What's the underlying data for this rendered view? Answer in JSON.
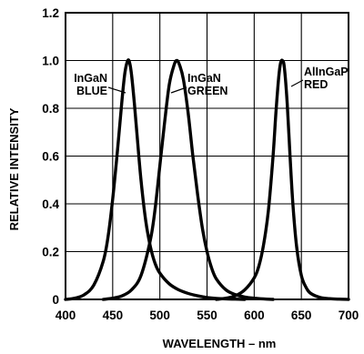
{
  "chart_data": {
    "type": "line",
    "title": "",
    "xlabel": "WAVELENGTH – nm",
    "ylabel": "RELATIVE INTENSITY",
    "xlim": [
      400,
      700
    ],
    "ylim": [
      0,
      1.2
    ],
    "xticks": [
      400,
      450,
      500,
      550,
      600,
      650,
      700
    ],
    "yticks": [
      0,
      0.2,
      0.4,
      0.6,
      0.8,
      1.0,
      1.2
    ],
    "xtick_labels": [
      "400",
      "450",
      "500",
      "550",
      "600",
      "650",
      "700"
    ],
    "ytick_labels": [
      "0",
      "0.2",
      "0.4",
      "0.6",
      "0.8",
      "1.0",
      "1.2"
    ],
    "grid": true,
    "series": [
      {
        "label_lines": [
          "InGaN",
          "BLUE"
        ],
        "x": [
          400,
          410,
          420,
          430,
          440,
          445,
          450,
          455,
          460,
          463,
          466,
          468,
          470,
          473,
          476,
          480,
          485,
          490,
          495,
          500,
          510,
          520,
          530,
          540,
          550,
          560,
          570,
          580,
          590
        ],
        "y": [
          0.0,
          0.005,
          0.02,
          0.06,
          0.16,
          0.26,
          0.42,
          0.62,
          0.84,
          0.95,
          1.0,
          0.99,
          0.94,
          0.82,
          0.68,
          0.5,
          0.33,
          0.22,
          0.15,
          0.11,
          0.065,
          0.04,
          0.025,
          0.015,
          0.008,
          0.004,
          0.002,
          0.001,
          0.0
        ]
      },
      {
        "label_lines": [
          "InGaN",
          "GREEN"
        ],
        "x": [
          440,
          450,
          460,
          470,
          480,
          490,
          495,
          500,
          505,
          510,
          515,
          518,
          521,
          525,
          530,
          535,
          540,
          545,
          550,
          555,
          560,
          570,
          580,
          590,
          600,
          610,
          620
        ],
        "y": [
          0.0,
          0.005,
          0.015,
          0.04,
          0.1,
          0.25,
          0.38,
          0.56,
          0.74,
          0.9,
          0.98,
          1.0,
          0.98,
          0.92,
          0.78,
          0.6,
          0.44,
          0.3,
          0.2,
          0.13,
          0.085,
          0.04,
          0.02,
          0.01,
          0.005,
          0.002,
          0.0
        ]
      },
      {
        "label_lines": [
          "AlInGaP",
          "RED"
        ],
        "x": [
          560,
          570,
          580,
          590,
          600,
          605,
          610,
          615,
          620,
          623,
          626,
          628,
          630,
          632,
          635,
          638,
          641,
          645,
          650,
          655,
          660,
          670,
          680,
          690,
          700
        ],
        "y": [
          0.0,
          0.005,
          0.015,
          0.04,
          0.09,
          0.14,
          0.23,
          0.37,
          0.6,
          0.78,
          0.93,
          0.99,
          1.0,
          0.97,
          0.82,
          0.6,
          0.4,
          0.22,
          0.1,
          0.05,
          0.025,
          0.008,
          0.003,
          0.001,
          0.0
        ]
      }
    ]
  }
}
